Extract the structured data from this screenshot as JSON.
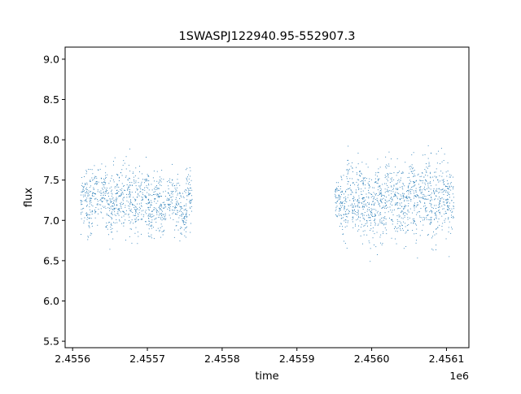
{
  "chart_data": {
    "type": "scatter",
    "title": "1SWASPJ122940.95-552907.3",
    "xlabel": "time",
    "ylabel": "flux",
    "x_offset_label": "1e6",
    "xlim": [
      2455590,
      2456130
    ],
    "ylim": [
      5.42,
      9.15
    ],
    "xticks": [
      2455600,
      2455700,
      2455800,
      2455900,
      2456000,
      2456100
    ],
    "xtick_labels": [
      "2.4556",
      "2.4557",
      "2.4558",
      "2.4559",
      "2.4560",
      "2.4561"
    ],
    "yticks": [
      5.5,
      6.0,
      6.5,
      7.0,
      7.5,
      8.0,
      8.5,
      9.0
    ],
    "ytick_labels": [
      "5.5",
      "6.0",
      "6.5",
      "7.0",
      "7.5",
      "8.0",
      "8.5",
      "9.0"
    ],
    "grid": false,
    "marker_color": "#1f77b4",
    "series": [
      {
        "name": "",
        "x": [
          2455615,
          2455622,
          2455630,
          2455640,
          2455648,
          2455655,
          2455663,
          2455672,
          2455680,
          2455688,
          2455697,
          2455705,
          2455712,
          2455720,
          2455730,
          2455740,
          2455748,
          2455755,
          2455955,
          2455962,
          2455970,
          2455978,
          2455985,
          2455992,
          2456000,
          2456008,
          2456015,
          2456022,
          2456030,
          2456038,
          2456045,
          2456052,
          2456060,
          2456068,
          2456075,
          2456082,
          2456090,
          2456098,
          2456105
        ],
        "y": [
          7.25,
          7.2,
          7.3,
          7.35,
          7.15,
          7.25,
          7.3,
          7.35,
          7.2,
          7.25,
          7.3,
          7.1,
          7.25,
          7.15,
          7.3,
          7.2,
          7.1,
          7.3,
          7.25,
          7.2,
          7.35,
          7.2,
          7.3,
          7.25,
          7.1,
          7.3,
          7.2,
          7.35,
          7.25,
          7.3,
          7.15,
          7.4,
          7.2,
          7.3,
          7.35,
          7.2,
          7.25,
          7.3,
          7.2
        ],
        "spread": [
          0.3,
          0.35,
          0.35,
          0.3,
          0.35,
          0.4,
          0.35,
          0.45,
          0.45,
          0.45,
          0.35,
          0.4,
          0.35,
          0.4,
          0.35,
          0.35,
          0.3,
          0.35,
          0.3,
          0.4,
          0.45,
          0.4,
          0.5,
          0.45,
          0.5,
          0.45,
          0.5,
          0.45,
          0.45,
          0.5,
          0.45,
          0.45,
          0.5,
          0.45,
          0.5,
          0.45,
          0.45,
          0.4,
          0.4
        ]
      }
    ]
  }
}
